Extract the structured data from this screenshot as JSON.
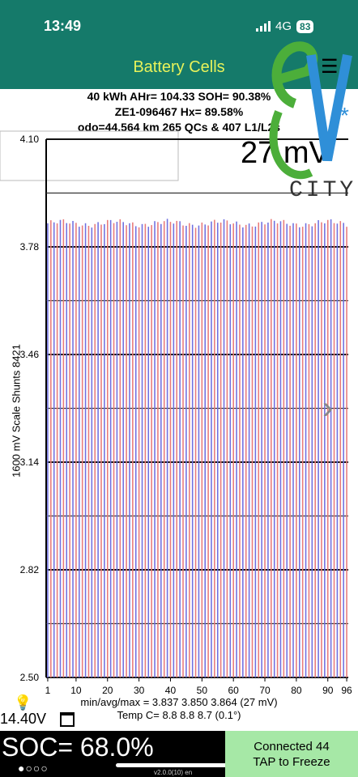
{
  "status": {
    "time": "13:49",
    "network": "4G",
    "battery": "83"
  },
  "header": {
    "title": "Battery Cells"
  },
  "info": {
    "line1": "40 kWh  AHr= 104.33  SOH= 90.38%",
    "line2": "ZE1-096467  Hx= 89.58%",
    "line3": "odo=44,564 km 265 QCs & 407 L1/L2s"
  },
  "delta": {
    "value": "27 mV"
  },
  "logo": {
    "text": "CITY"
  },
  "chart_data": {
    "type": "bar",
    "ylabel": "1600 mV Scale   Shunts 8421",
    "ylim": [
      2.5,
      4.1
    ],
    "yticks": [
      "4.10",
      "3.78",
      "3.46",
      "3.14",
      "2.82",
      "2.50"
    ],
    "xticks": [
      "1",
      "10",
      "20",
      "30",
      "40",
      "50",
      "60",
      "70",
      "80",
      "90",
      "96"
    ],
    "cell_count": 96,
    "min": 3.837,
    "avg": 3.85,
    "max": 3.864,
    "colors": {
      "odd": "#6f6fe0",
      "even": "#e87a7a"
    }
  },
  "footer": {
    "stats": "min/avg/max = 3.837 3.850 3.864  (27 mV)",
    "temp": "Temp C= 8.8  8.8  8.7  (0.1°)",
    "voltage": "14.40V",
    "soc": "SOC= 68.0%",
    "dots": "●○○○",
    "version": "v2.0.0(10) en",
    "connected": "Connected 44",
    "tap": "TAP to Freeze"
  }
}
